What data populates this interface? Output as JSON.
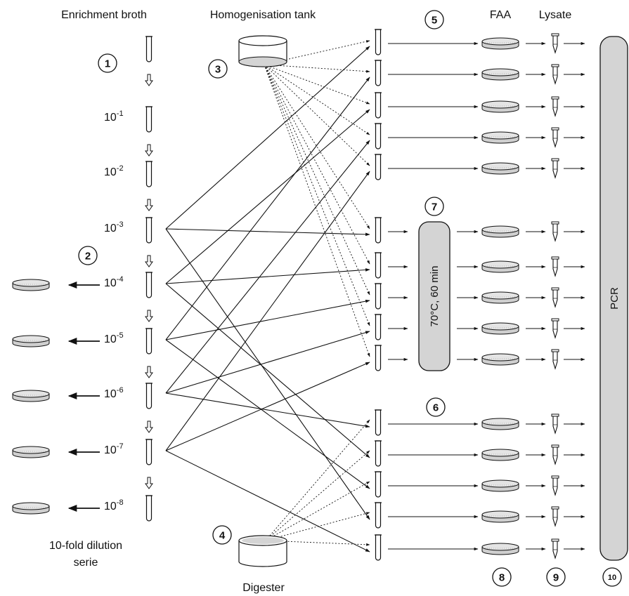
{
  "headers": {
    "enrichment": "Enrichment broth",
    "homogenisation": "Homogenisation tank",
    "faa": "FAA",
    "lysate": "Lysate"
  },
  "labels": {
    "digester": "Digester",
    "dilution_line1": "10-fold dilution",
    "dilution_line2": "serie",
    "heat_step": "70°C, 60 min",
    "pcr": "PCR"
  },
  "dilutions": [
    {
      "base": "",
      "exp": ""
    },
    {
      "base": "10",
      "exp": "-1"
    },
    {
      "base": "10",
      "exp": "-2"
    },
    {
      "base": "10",
      "exp": "-3"
    },
    {
      "base": "10",
      "exp": "-4"
    },
    {
      "base": "10",
      "exp": "-5"
    },
    {
      "base": "10",
      "exp": "-6"
    },
    {
      "base": "10",
      "exp": "-7"
    },
    {
      "base": "10",
      "exp": "-8"
    }
  ],
  "step_markers": [
    "1",
    "2",
    "3",
    "4",
    "5",
    "6",
    "7",
    "8",
    "9",
    "10"
  ],
  "plated_dilutions": [
    "-4",
    "-5",
    "-6",
    "-7",
    "-8"
  ],
  "colors": {
    "line": "#111111",
    "fill_grey": "#d4d4d4",
    "dish_grey": "#cfcfcf",
    "background": "#ffffff"
  },
  "icons": {
    "tube": "test-tube-icon",
    "dish": "petri-dish-icon",
    "lysate_tube": "pcr-tube-icon",
    "tank": "cylinder-tank-icon"
  }
}
